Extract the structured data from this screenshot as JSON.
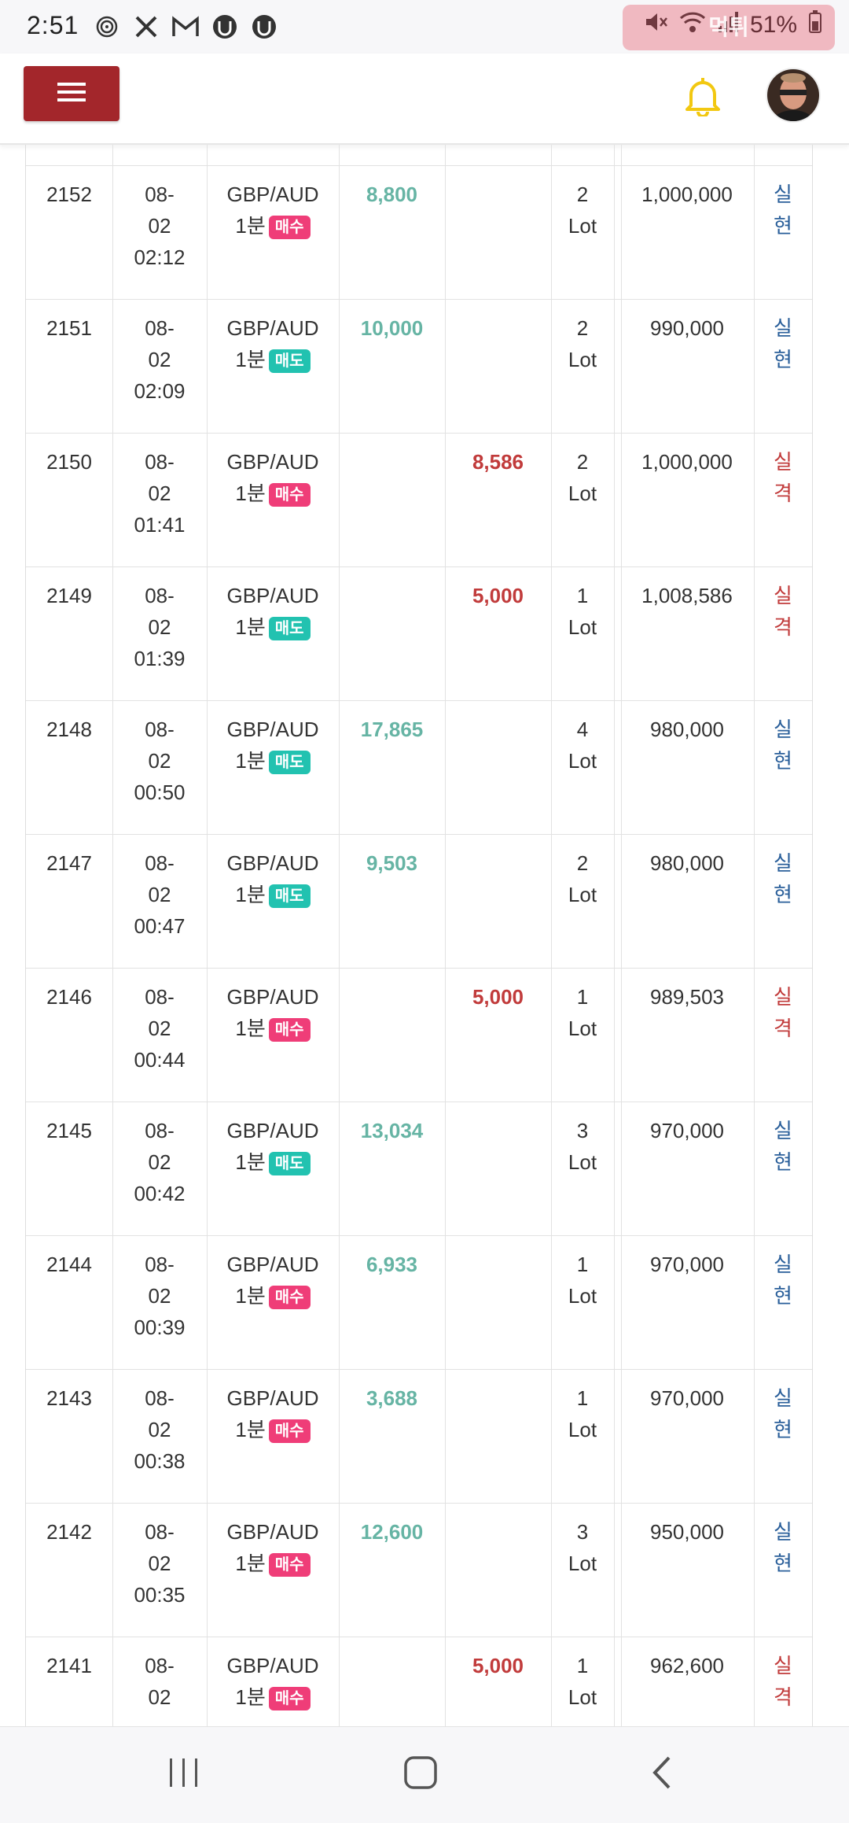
{
  "status_bar": {
    "time": "2:51",
    "battery": "51%",
    "left_icons": [
      "fingerprint-icon",
      "tools-icon",
      "gmail-icon",
      "app-icon",
      "app-icon"
    ],
    "watermark": "먹튀"
  },
  "header": {
    "menu_icon": "hamburger-icon",
    "bell_icon": "bell-icon",
    "avatar_icon": "user-avatar"
  },
  "colors": {
    "menu_button": "#a3262b",
    "profit": "#66b4a4",
    "loss": "#c13b3b",
    "buy_badge": "#ef3d78",
    "sell_badge": "#22c2b0",
    "bell": "#f2c811"
  },
  "rows": [
    {
      "id": "2152",
      "date": "08-",
      "date2": "02",
      "time": "02:12",
      "pair": "GBP/AUD",
      "period": "1분",
      "side": "매수",
      "side_type": "buy",
      "profit": "8,800",
      "loss": "",
      "lot_n": "2",
      "lot_u": "Lot",
      "balance": "1,000,000",
      "res1": "실",
      "res2": "현",
      "res_type": "win"
    },
    {
      "id": "2151",
      "date": "08-",
      "date2": "02",
      "time": "02:09",
      "pair": "GBP/AUD",
      "period": "1분",
      "side": "매도",
      "side_type": "sell",
      "profit": "10,000",
      "loss": "",
      "lot_n": "2",
      "lot_u": "Lot",
      "balance": "990,000",
      "res1": "실",
      "res2": "현",
      "res_type": "win"
    },
    {
      "id": "2150",
      "date": "08-",
      "date2": "02",
      "time": "01:41",
      "pair": "GBP/AUD",
      "period": "1분",
      "side": "매수",
      "side_type": "buy",
      "profit": "",
      "loss": "8,586",
      "lot_n": "2",
      "lot_u": "Lot",
      "balance": "1,000,000",
      "res1": "실",
      "res2": "격",
      "res_type": "loss"
    },
    {
      "id": "2149",
      "date": "08-",
      "date2": "02",
      "time": "01:39",
      "pair": "GBP/AUD",
      "period": "1분",
      "side": "매도",
      "side_type": "sell",
      "profit": "",
      "loss": "5,000",
      "lot_n": "1",
      "lot_u": "Lot",
      "balance": "1,008,586",
      "res1": "실",
      "res2": "격",
      "res_type": "loss"
    },
    {
      "id": "2148",
      "date": "08-",
      "date2": "02",
      "time": "00:50",
      "pair": "GBP/AUD",
      "period": "1분",
      "side": "매도",
      "side_type": "sell",
      "profit": "17,865",
      "loss": "",
      "lot_n": "4",
      "lot_u": "Lot",
      "balance": "980,000",
      "res1": "실",
      "res2": "현",
      "res_type": "win"
    },
    {
      "id": "2147",
      "date": "08-",
      "date2": "02",
      "time": "00:47",
      "pair": "GBP/AUD",
      "period": "1분",
      "side": "매도",
      "side_type": "sell",
      "profit": "9,503",
      "loss": "",
      "lot_n": "2",
      "lot_u": "Lot",
      "balance": "980,000",
      "res1": "실",
      "res2": "현",
      "res_type": "win"
    },
    {
      "id": "2146",
      "date": "08-",
      "date2": "02",
      "time": "00:44",
      "pair": "GBP/AUD",
      "period": "1분",
      "side": "매수",
      "side_type": "buy",
      "profit": "",
      "loss": "5,000",
      "lot_n": "1",
      "lot_u": "Lot",
      "balance": "989,503",
      "res1": "실",
      "res2": "격",
      "res_type": "loss"
    },
    {
      "id": "2145",
      "date": "08-",
      "date2": "02",
      "time": "00:42",
      "pair": "GBP/AUD",
      "period": "1분",
      "side": "매도",
      "side_type": "sell",
      "profit": "13,034",
      "loss": "",
      "lot_n": "3",
      "lot_u": "Lot",
      "balance": "970,000",
      "res1": "실",
      "res2": "현",
      "res_type": "win"
    },
    {
      "id": "2144",
      "date": "08-",
      "date2": "02",
      "time": "00:39",
      "pair": "GBP/AUD",
      "period": "1분",
      "side": "매수",
      "side_type": "buy",
      "profit": "6,933",
      "loss": "",
      "lot_n": "1",
      "lot_u": "Lot",
      "balance": "970,000",
      "res1": "실",
      "res2": "현",
      "res_type": "win"
    },
    {
      "id": "2143",
      "date": "08-",
      "date2": "02",
      "time": "00:38",
      "pair": "GBP/AUD",
      "period": "1분",
      "side": "매수",
      "side_type": "buy",
      "profit": "3,688",
      "loss": "",
      "lot_n": "1",
      "lot_u": "Lot",
      "balance": "970,000",
      "res1": "실",
      "res2": "현",
      "res_type": "win"
    },
    {
      "id": "2142",
      "date": "08-",
      "date2": "02",
      "time": "00:35",
      "pair": "GBP/AUD",
      "period": "1분",
      "side": "매수",
      "side_type": "buy",
      "profit": "12,600",
      "loss": "",
      "lot_n": "3",
      "lot_u": "Lot",
      "balance": "950,000",
      "res1": "실",
      "res2": "현",
      "res_type": "win"
    },
    {
      "id": "2141",
      "date": "08-",
      "date2": "02",
      "time": "",
      "pair": "GBP/AUD",
      "period": "1분",
      "side": "매수",
      "side_type": "buy",
      "profit": "",
      "loss": "5,000",
      "lot_n": "1",
      "lot_u": "Lot",
      "balance": "962,600",
      "res1": "실",
      "res2": "격",
      "res_type": "loss"
    }
  ],
  "nav": {
    "recents_icon": "recents-icon",
    "home_icon": "home-icon",
    "back_icon": "back-icon"
  }
}
